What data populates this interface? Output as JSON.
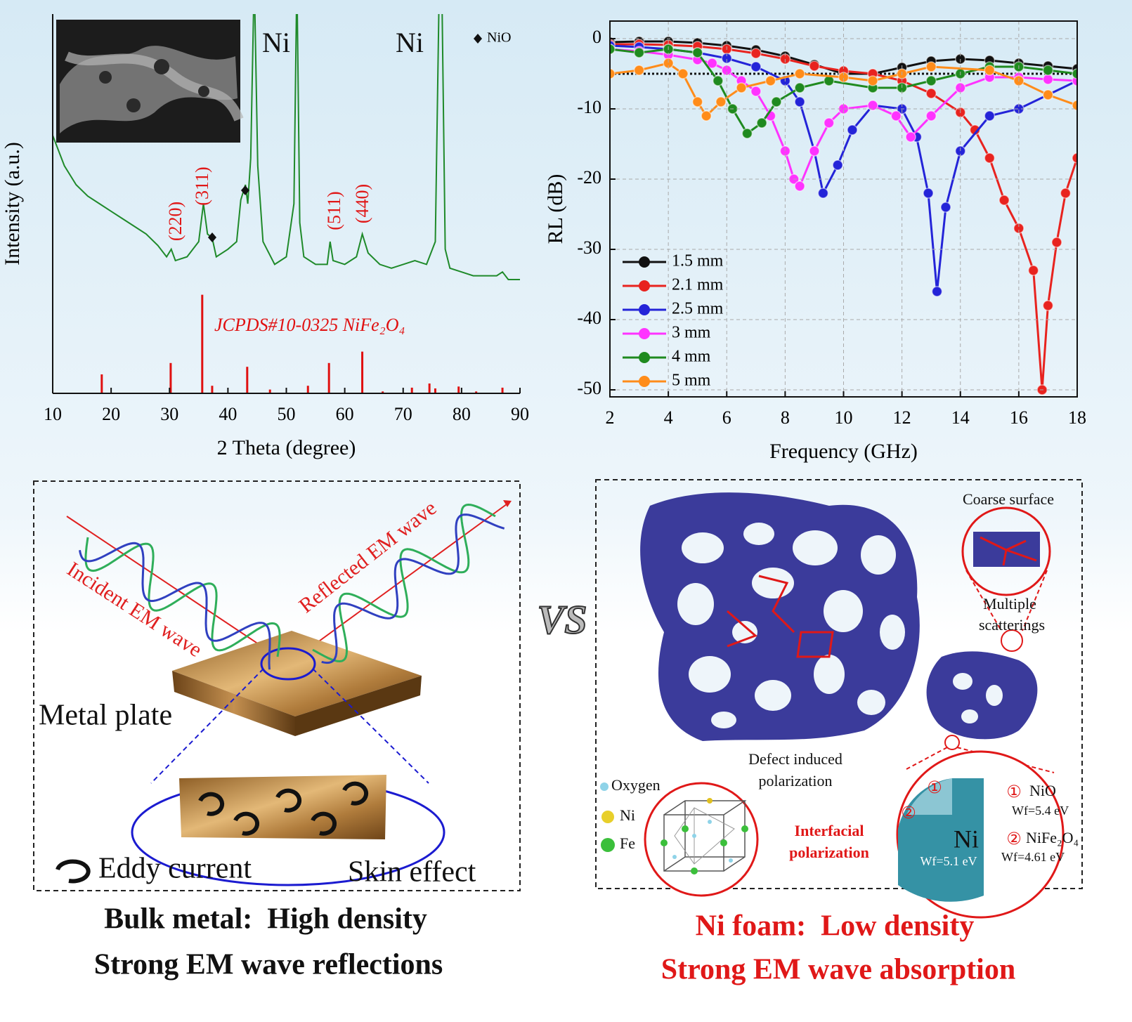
{
  "chart_data": [
    {
      "type": "line",
      "xlabel": "2 Theta (degree)",
      "ylabel": "Intensity (a.u.)",
      "xlim": [
        10,
        90
      ],
      "xticks": [
        10,
        20,
        30,
        40,
        50,
        60,
        70,
        80,
        90
      ],
      "ylim": [
        0,
        100
      ],
      "grid": false,
      "markers": false,
      "series": [
        {
          "color": "#1f8a2a",
          "x": [
            10,
            12,
            14,
            16,
            18,
            20,
            22,
            24,
            26,
            28,
            29.5,
            30.3,
            31,
            33,
            35,
            35.8,
            36.5,
            37.3,
            38,
            40,
            41.5,
            42.2,
            43,
            43.4,
            43.9,
            44.5,
            45.1,
            46,
            48,
            50,
            51.3,
            51.8,
            52.3,
            53,
            55,
            57,
            57.5,
            58,
            60,
            62,
            63,
            64,
            66,
            68,
            70,
            72,
            74,
            75.5,
            76.2,
            76.6,
            77.2,
            78,
            80,
            82,
            84,
            86,
            87,
            88,
            90
          ],
          "values": [
            68,
            60,
            55,
            52,
            50,
            48,
            46,
            44,
            42,
            39,
            36,
            38,
            35,
            36,
            40,
            50,
            42,
            41,
            36,
            38,
            40,
            51,
            55,
            50,
            62,
            110,
            60,
            40,
            34,
            36,
            50,
            110,
            45,
            36,
            34,
            34,
            40,
            35,
            34,
            36,
            42,
            37,
            34,
            33,
            34,
            35,
            34,
            40,
            110,
            110,
            38,
            33,
            32,
            31,
            31,
            31,
            32,
            30,
            30
          ]
        }
      ],
      "reference": {
        "label": "JCPDS#10-0325 NiFe₂O₄",
        "color": "#e01010",
        "x": [
          18.4,
          30.2,
          35.6,
          37.3,
          43.3,
          47.2,
          53.7,
          57.3,
          63,
          66.5,
          71.5,
          74.5,
          75.5,
          79.5,
          82.5,
          87
        ],
        "values": [
          5,
          8,
          26,
          2,
          7,
          1,
          2,
          8,
          11,
          0.5,
          1.5,
          2.6,
          1.3,
          1.8,
          0.5,
          1.5
        ]
      },
      "annotations": [
        "Ni",
        "Ni",
        "(220)",
        "(311)",
        "(511)",
        "(440)"
      ],
      "legend_label": "NiO"
    },
    {
      "type": "line",
      "xlabel": "Frequency (GHz)",
      "ylabel": "RL (dB)",
      "xlim": [
        2,
        18
      ],
      "xticks": [
        2,
        4,
        6,
        8,
        10,
        12,
        14,
        16,
        18
      ],
      "ylim": [
        -51,
        2.5
      ],
      "yticks": [
        0,
        -10,
        -20,
        -30,
        -40,
        -50
      ],
      "grid": true,
      "markers": true,
      "threshold": -5,
      "legend": "lower left",
      "series": [
        {
          "name": "1.5 mm",
          "color": "#111111",
          "x": [
            2,
            3,
            4,
            5,
            6,
            7,
            8,
            9,
            10,
            11,
            12,
            13,
            14,
            15,
            16,
            17,
            18
          ],
          "values": [
            -0.5,
            -0.4,
            -0.4,
            -0.6,
            -1,
            -1.6,
            -2.5,
            -3.7,
            -5,
            -5,
            -4.1,
            -3.2,
            -2.9,
            -3.1,
            -3.5,
            -3.9,
            -4.3
          ]
        },
        {
          "name": "2.1 mm",
          "color": "#e8231f",
          "x": [
            2,
            3,
            4,
            5,
            6,
            7,
            8,
            9,
            10,
            11,
            12,
            13,
            14,
            14.5,
            15,
            15.5,
            16,
            16.5,
            16.8,
            17,
            17.3,
            17.6,
            18
          ],
          "values": [
            -0.8,
            -0.8,
            -0.9,
            -1.1,
            -1.5,
            -2.1,
            -2.9,
            -3.9,
            -4.6,
            -5,
            -6,
            -7.8,
            -10.5,
            -13,
            -17,
            -23,
            -27,
            -33,
            -50,
            -38,
            -29,
            -22,
            -17
          ]
        },
        {
          "name": "2.5 mm",
          "color": "#2424d8",
          "x": [
            2,
            3,
            4,
            5,
            6,
            7,
            8,
            8.5,
            9,
            9.3,
            9.8,
            10.3,
            11,
            12,
            12.5,
            12.9,
            13.2,
            13.5,
            14,
            15,
            16,
            17,
            18
          ],
          "values": [
            -1,
            -1.2,
            -1.5,
            -2,
            -2.8,
            -4,
            -6,
            -9,
            -16,
            -22,
            -18,
            -13,
            -9.5,
            -10,
            -14,
            -22,
            -36,
            -24,
            -16,
            -11,
            -10,
            -8,
            -6
          ]
        },
        {
          "name": "3 mm",
          "color": "#ff33ff",
          "x": [
            2,
            3,
            4,
            5,
            5.5,
            6,
            6.5,
            7,
            7.5,
            8,
            8.3,
            8.5,
            9,
            9.5,
            10,
            11,
            11.8,
            12.3,
            13,
            14,
            15,
            16,
            17,
            18
          ],
          "values": [
            -1.5,
            -1.8,
            -2.3,
            -3,
            -3.5,
            -4.5,
            -6,
            -7.5,
            -11,
            -16,
            -20,
            -21,
            -16,
            -12,
            -10,
            -9.5,
            -11,
            -14,
            -11,
            -7,
            -5.5,
            -5.5,
            -5.8,
            -6
          ]
        },
        {
          "name": "4 mm",
          "color": "#1f8a1f",
          "x": [
            2,
            3,
            4,
            5,
            5.7,
            6.2,
            6.7,
            7.2,
            7.7,
            8.5,
            9.5,
            11,
            12,
            13,
            14,
            15,
            16,
            17,
            18
          ],
          "values": [
            -1.5,
            -2,
            -1.5,
            -2,
            -6,
            -10,
            -13.5,
            -12,
            -9,
            -7,
            -6,
            -7,
            -7,
            -6,
            -5,
            -4,
            -4,
            -4.5,
            -5
          ]
        },
        {
          "name": "5 mm",
          "color": "#ff8c1a",
          "x": [
            2,
            3,
            4,
            4.5,
            5,
            5.3,
            5.8,
            6.5,
            7.5,
            8.5,
            10,
            11,
            12,
            13,
            15,
            16,
            17,
            18
          ],
          "values": [
            -5,
            -4.5,
            -3.5,
            -5,
            -9,
            -11,
            -9,
            -7,
            -6,
            -5,
            -5.5,
            -6,
            -5,
            -4,
            -4.5,
            -6,
            -8,
            -9.5
          ]
        }
      ]
    }
  ],
  "left_panel": {
    "incident": "Incident EM wave",
    "reflected": "Reflected EM wave",
    "plate": "Metal plate",
    "eddy": "Eddy current",
    "skin": "Skin effect",
    "caption": [
      "Bulk metal:  High density",
      "Strong EM wave reflections"
    ]
  },
  "vs": "VS",
  "right_panel": {
    "coarse": "Coarse surface",
    "scattering": [
      "Multiple",
      "scatterings"
    ],
    "defect": [
      "Defect induced",
      "polarization"
    ],
    "atoms": [
      "Oxygen",
      "Ni",
      "Fe"
    ],
    "interfacial": [
      "Interfacial",
      "polarization"
    ],
    "core": "Ni",
    "core_wf": "Wf=5.1 eV",
    "marks": [
      "①",
      "②"
    ],
    "phases": [
      {
        "num": "①",
        "name": "NiO",
        "wf": "Wf=5.4 eV"
      },
      {
        "num": "②",
        "name": "NiFe₂O₄",
        "wf": "Wf=4.61 eV"
      }
    ],
    "caption": [
      "Ni foam:  Low density",
      "Strong EM wave absorption"
    ]
  }
}
